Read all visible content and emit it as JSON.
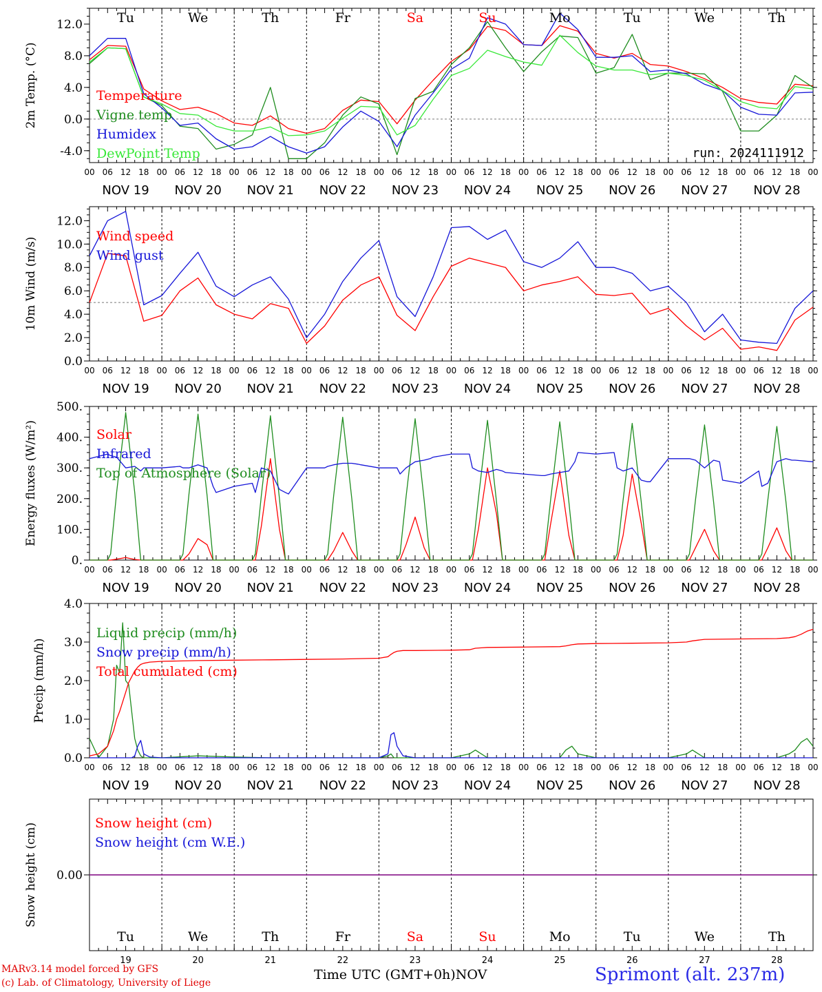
{
  "station": "Sprimont (alt. 237m)",
  "credit": [
    "MARv3.14 model forced by GFS",
    "(c) Lab. of Climatology, University of Liege"
  ],
  "x_title": "Time UTC (GMT+0h)",
  "month": "NOV",
  "run_label": "run: 2024111912",
  "days": [
    {
      "abbr": "Tu",
      "date": "NOV 19",
      "num": "19",
      "weekend": false
    },
    {
      "abbr": "We",
      "date": "NOV 20",
      "num": "20",
      "weekend": false
    },
    {
      "abbr": "Th",
      "date": "NOV 21",
      "num": "21",
      "weekend": false
    },
    {
      "abbr": "Fr",
      "date": "NOV 22",
      "num": "22",
      "weekend": false
    },
    {
      "abbr": "Sa",
      "date": "NOV 23",
      "num": "23",
      "weekend": true
    },
    {
      "abbr": "Su",
      "date": "NOV 24",
      "num": "24",
      "weekend": true
    },
    {
      "abbr": "Mo",
      "date": "NOV 25",
      "num": "25",
      "weekend": false
    },
    {
      "abbr": "Tu",
      "date": "NOV 26",
      "num": "26",
      "weekend": false
    },
    {
      "abbr": "We",
      "date": "NOV 27",
      "num": "27",
      "weekend": false
    },
    {
      "abbr": "Th",
      "date": "NOV 28",
      "num": "28",
      "weekend": false
    }
  ],
  "hour_ticks": [
    "00",
    "06",
    "12",
    "18"
  ],
  "last_tick": "00",
  "colors": {
    "red": "#ff0000",
    "darkgreen": "#1e8c1e",
    "blue": "#1515d8",
    "lightgreen": "#38e838",
    "purple": "#7d2aa8",
    "weekend": "#ff0000"
  },
  "chart_data": [
    {
      "type": "line",
      "ylabel": "2m Temp. (°C)",
      "ylim": [
        -5.5,
        14
      ],
      "yticks": [
        -4,
        0,
        4,
        8,
        12
      ],
      "ytick_labels": [
        "-4.0",
        "0.0",
        "4.0",
        "8.0",
        "12.0"
      ],
      "ref_line": 0,
      "x_hours": [
        0,
        6,
        12,
        18,
        24,
        30,
        36,
        42,
        48,
        54,
        60,
        66,
        72,
        78,
        84,
        90,
        96,
        102,
        108,
        114,
        120,
        126,
        132,
        138,
        144,
        150,
        156,
        162,
        168,
        174,
        180,
        186,
        192,
        198,
        204,
        210,
        216,
        222,
        228,
        234,
        240
      ],
      "series": [
        {
          "name": "Temperature",
          "color": "red",
          "values": [
            7.5,
            9.3,
            9.2,
            3.8,
            2.3,
            1.2,
            1.5,
            0.7,
            -0.5,
            -0.8,
            0.4,
            -1.2,
            -1.8,
            -1.2,
            1.1,
            2.4,
            2.2,
            -0.6,
            2.4,
            4.9,
            7.3,
            8.8,
            11.7,
            11.2,
            9.4,
            9.3,
            11.8,
            11.1,
            8.3,
            7.7,
            8.3,
            6.9,
            6.7,
            6.0,
            5.1,
            4.0,
            2.6,
            2.1,
            1.9,
            4.4,
            4.2
          ]
        },
        {
          "name": "Vigne temp",
          "color": "darkgreen",
          "values": [
            7.0,
            9.0,
            8.9,
            2.8,
            1.7,
            -0.9,
            -1.2,
            -3.8,
            -3.2,
            -2.0,
            4.0,
            -5.0,
            -5.0,
            -3.0,
            0.5,
            2.8,
            1.9,
            -4.5,
            2.6,
            3.5,
            6.9,
            9.0,
            12.3,
            9.0,
            6.0,
            8.5,
            10.5,
            10.3,
            5.8,
            6.5,
            10.7,
            5.0,
            5.8,
            5.8,
            5.7,
            3.5,
            -1.5,
            -1.5,
            0.5,
            5.5,
            4.0
          ]
        },
        {
          "name": "Humidex",
          "color": "blue",
          "values": [
            8.0,
            10.2,
            10.2,
            3.2,
            1.4,
            -0.8,
            -0.5,
            -2.5,
            -3.8,
            -3.5,
            -2.2,
            -3.5,
            -4.3,
            -3.5,
            -1.0,
            1.0,
            -0.3,
            -3.5,
            0.5,
            3.3,
            6.3,
            7.7,
            12.8,
            12.0,
            9.4,
            9.3,
            13.4,
            11.3,
            7.8,
            7.8,
            8.0,
            6.0,
            6.2,
            5.7,
            4.4,
            3.6,
            1.5,
            0.6,
            0.5,
            3.3,
            3.4
          ]
        },
        {
          "name": "DewPoint Temp",
          "color": "lightgreen",
          "values": [
            7.2,
            9.0,
            8.9,
            2.8,
            1.9,
            0.7,
            0.5,
            -0.9,
            -1.5,
            -1.5,
            -1.0,
            -2.1,
            -2.0,
            -1.5,
            0.1,
            1.6,
            1.5,
            -2.0,
            -0.8,
            2.5,
            5.5,
            6.4,
            8.7,
            7.9,
            7.2,
            6.8,
            10.6,
            8.4,
            6.7,
            6.2,
            6.2,
            5.6,
            5.8,
            5.5,
            4.9,
            3.6,
            2.2,
            1.5,
            1.3,
            4.1,
            3.8
          ]
        }
      ]
    },
    {
      "type": "line",
      "ylabel": "10m Wind (m/s)",
      "ylim": [
        0,
        13.2
      ],
      "yticks": [
        0,
        2,
        4,
        6,
        8,
        10,
        12
      ],
      "ytick_labels": [
        "0.0",
        "2.0",
        "4.0",
        "6.0",
        "8.0",
        "10.0",
        "12.0"
      ],
      "ref_line": 5,
      "x_hours": [
        0,
        6,
        12,
        18,
        24,
        30,
        36,
        42,
        48,
        54,
        60,
        66,
        72,
        78,
        84,
        90,
        96,
        102,
        108,
        114,
        120,
        126,
        132,
        138,
        144,
        150,
        156,
        162,
        168,
        174,
        180,
        186,
        192,
        198,
        204,
        210,
        216,
        222,
        228,
        234,
        240
      ],
      "series": [
        {
          "name": "Wind speed",
          "color": "red",
          "values": [
            5.0,
            9.2,
            9.0,
            3.4,
            3.9,
            6.0,
            7.1,
            4.8,
            4.0,
            3.6,
            4.9,
            4.5,
            1.5,
            3.0,
            5.2,
            6.5,
            7.2,
            3.9,
            2.6,
            5.5,
            8.1,
            8.8,
            8.4,
            8.0,
            6.0,
            6.5,
            6.8,
            7.2,
            5.7,
            5.6,
            5.8,
            4.0,
            4.5,
            3.0,
            1.8,
            2.8,
            1.0,
            1.2,
            0.9,
            3.5,
            4.6
          ]
        },
        {
          "name": "Wind gust",
          "color": "blue",
          "values": [
            9.0,
            12.0,
            12.8,
            4.8,
            5.6,
            7.5,
            9.3,
            6.4,
            5.5,
            6.5,
            7.2,
            5.3,
            2.0,
            4.0,
            6.8,
            8.8,
            10.3,
            5.5,
            3.8,
            7.2,
            11.4,
            11.5,
            10.4,
            11.2,
            8.5,
            8.0,
            8.8,
            10.2,
            8.0,
            8.0,
            7.5,
            6.0,
            6.4,
            5.0,
            2.5,
            4.0,
            1.8,
            1.6,
            1.5,
            4.5,
            6.0
          ]
        }
      ]
    },
    {
      "type": "line",
      "ylabel": "Energy fluxes (W/m²)",
      "ylim": [
        0,
        500
      ],
      "yticks": [
        0,
        100,
        200,
        300,
        400,
        500
      ],
      "ytick_labels": [
        "0.",
        "100.",
        "200.",
        "300.",
        "400.",
        "500."
      ],
      "x_hours": [
        0,
        6,
        7,
        9,
        12,
        15,
        17,
        18,
        24,
        30,
        31,
        33,
        36,
        39,
        41,
        42,
        48,
        54,
        55,
        57,
        60,
        63,
        65,
        66,
        72,
        78,
        79,
        81,
        84,
        87,
        89,
        90,
        96,
        102,
        103,
        105,
        108,
        111,
        113,
        114,
        120,
        126,
        127,
        129,
        132,
        135,
        137,
        138,
        144,
        150,
        151,
        153,
        156,
        159,
        161,
        162,
        168,
        174,
        175,
        177,
        180,
        183,
        185,
        186,
        192,
        198,
        199,
        201,
        204,
        207,
        209,
        210,
        216,
        222,
        223,
        225,
        228,
        231,
        233,
        234,
        240
      ],
      "series": [
        {
          "name": "Solar",
          "color": "red",
          "values": [
            0,
            0,
            0,
            3,
            8,
            2,
            0,
            0,
            0,
            0,
            0,
            20,
            70,
            50,
            0,
            0,
            0,
            0,
            0,
            110,
            330,
            100,
            0,
            0,
            0,
            0,
            0,
            30,
            90,
            30,
            0,
            0,
            0,
            0,
            0,
            50,
            140,
            40,
            0,
            0,
            0,
            0,
            0,
            100,
            300,
            150,
            0,
            0,
            0,
            0,
            0,
            120,
            290,
            80,
            0,
            0,
            0,
            0,
            0,
            80,
            280,
            120,
            0,
            0,
            0,
            0,
            0,
            40,
            100,
            30,
            0,
            0,
            0,
            0,
            0,
            40,
            105,
            30,
            0,
            0,
            0
          ]
        },
        {
          "name": "Top of Atmosphere (Solar)",
          "color": "darkgreen",
          "values": [
            0,
            0,
            20,
            220,
            480,
            220,
            0,
            0,
            0,
            0,
            20,
            215,
            475,
            210,
            0,
            0,
            0,
            0,
            20,
            210,
            470,
            200,
            0,
            0,
            0,
            0,
            20,
            210,
            465,
            200,
            0,
            0,
            0,
            0,
            20,
            205,
            460,
            195,
            0,
            0,
            0,
            0,
            20,
            200,
            455,
            190,
            0,
            0,
            0,
            0,
            20,
            200,
            450,
            190,
            0,
            0,
            0,
            0,
            20,
            195,
            445,
            190,
            0,
            0,
            0,
            0,
            20,
            195,
            440,
            190,
            0,
            0,
            0,
            0,
            20,
            195,
            435,
            190,
            0,
            0,
            0
          ]
        },
        {
          "name": "Infrared",
          "color": "blue",
          "values": [
            330,
            345,
            340,
            335,
            300,
            305,
            290,
            300,
            300,
            305,
            300,
            300,
            310,
            300,
            240,
            220,
            240,
            250,
            220,
            300,
            290,
            230,
            220,
            215,
            300,
            300,
            305,
            310,
            315,
            315,
            312,
            310,
            300,
            300,
            280,
            300,
            320,
            325,
            330,
            335,
            345,
            345,
            300,
            290,
            285,
            295,
            290,
            285,
            280,
            275,
            275,
            280,
            285,
            290,
            320,
            350,
            345,
            350,
            300,
            290,
            300,
            260,
            255,
            255,
            330,
            330,
            330,
            325,
            300,
            325,
            320,
            260,
            250,
            290,
            240,
            250,
            320,
            330,
            325,
            325,
            320
          ]
        }
      ]
    },
    {
      "type": "line",
      "ylabel": "Precip (mm/h)",
      "ylim": [
        0,
        4
      ],
      "yticks": [
        0,
        1,
        2,
        3,
        4
      ],
      "ytick_labels": [
        "0.0",
        "1.0",
        "2.0",
        "3.0",
        "4.0"
      ],
      "x_hours": [
        0,
        3,
        6,
        8,
        9,
        10,
        11,
        12,
        13,
        14,
        15,
        16,
        17,
        18,
        20,
        24,
        36,
        48,
        60,
        72,
        84,
        96,
        99,
        100,
        101,
        102,
        104,
        108,
        120,
        126,
        128,
        130,
        132,
        144,
        156,
        158,
        160,
        162,
        168,
        180,
        192,
        198,
        200,
        202,
        204,
        216,
        228,
        232,
        234,
        236,
        238,
        240
      ],
      "series": [
        {
          "name": "Liquid precip (mm/h)",
          "color": "darkgreen",
          "values": [
            0.5,
            0.0,
            0.3,
            1.0,
            2.4,
            2.2,
            3.5,
            2.0,
            1.9,
            1.2,
            0.5,
            0.2,
            0.05,
            0.0,
            0.0,
            0.0,
            0.05,
            0.02,
            0.0,
            0.0,
            0.0,
            0.0,
            0.05,
            0.1,
            0.0,
            0.0,
            0.0,
            0.0,
            0.0,
            0.1,
            0.2,
            0.1,
            0.0,
            0.0,
            0.0,
            0.2,
            0.3,
            0.1,
            0.0,
            0.0,
            0.0,
            0.1,
            0.2,
            0.1,
            0.0,
            0.0,
            0.0,
            0.1,
            0.2,
            0.4,
            0.5,
            0.3
          ]
        },
        {
          "name": "Snow precip (mm/h)",
          "color": "blue",
          "values": [
            0.0,
            0.0,
            0.0,
            0.0,
            0.0,
            0.0,
            0.0,
            0.0,
            0.0,
            0.0,
            0.05,
            0.3,
            0.45,
            0.1,
            0.02,
            0.0,
            0.0,
            0.0,
            0.0,
            0.0,
            0.0,
            0.0,
            0.1,
            0.6,
            0.65,
            0.3,
            0.05,
            0.0,
            0.0,
            0.0,
            0.0,
            0.0,
            0.0,
            0.0,
            0.0,
            0.0,
            0.0,
            0.0,
            0.0,
            0.0,
            0.0,
            0.0,
            0.0,
            0.0,
            0.0,
            0.0,
            0.0,
            0.0,
            0.0,
            0.0,
            0.0,
            0.0
          ]
        },
        {
          "name": "Total cumulated (cm)",
          "color": "red",
          "values": [
            0.05,
            0.1,
            0.3,
            0.7,
            1.0,
            1.2,
            1.45,
            1.7,
            1.95,
            2.1,
            2.25,
            2.35,
            2.42,
            2.45,
            2.48,
            2.5,
            2.52,
            2.53,
            2.54,
            2.55,
            2.56,
            2.58,
            2.62,
            2.68,
            2.73,
            2.76,
            2.78,
            2.78,
            2.79,
            2.8,
            2.84,
            2.85,
            2.86,
            2.87,
            2.88,
            2.9,
            2.93,
            2.95,
            2.96,
            2.97,
            2.98,
            3.0,
            3.03,
            3.05,
            3.07,
            3.08,
            3.09,
            3.11,
            3.14,
            3.2,
            3.28,
            3.33
          ]
        }
      ]
    },
    {
      "type": "line",
      "ylabel": "Snow height (cm)",
      "ylim": [
        -1,
        1
      ],
      "yticks": [
        0
      ],
      "ytick_labels": [
        "0.00"
      ],
      "x_hours": [
        0,
        240
      ],
      "series": [
        {
          "name": "Snow height (cm)",
          "color": "red",
          "values": [
            0,
            0
          ]
        },
        {
          "name": "Snow height (cm W.E.)",
          "color": "purple",
          "values": [
            0,
            0
          ]
        }
      ]
    }
  ]
}
